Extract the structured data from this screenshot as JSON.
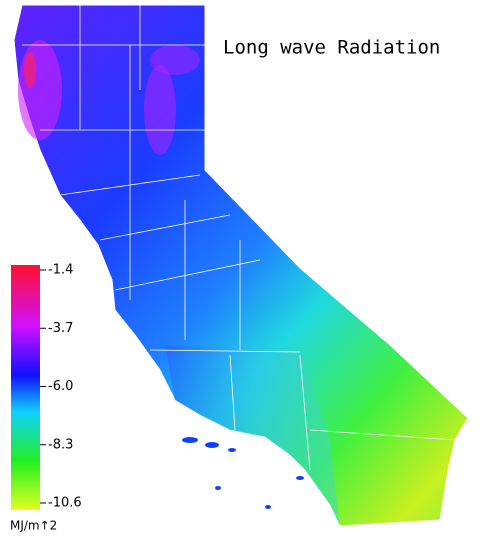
{
  "title": "Long wave Radiation",
  "colorbar": {
    "ticks": [
      -1.4,
      -3.7,
      {
        "value": -6,
        "label": "-6.0"
      },
      -8.3,
      -10.6
    ],
    "unit": "MJ/m↑2"
  }
}
